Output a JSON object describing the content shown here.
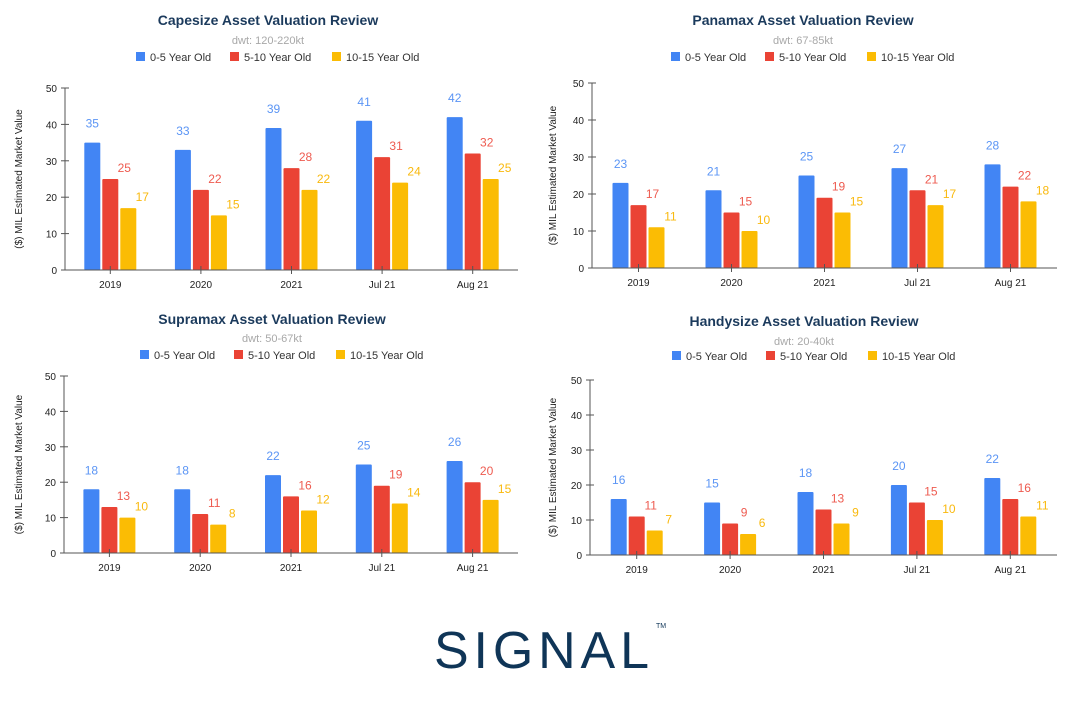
{
  "chart_data": [
    {
      "type": "bar",
      "title": "Capesize Asset Valuation Review",
      "subtitle": "dwt: 120-220kt",
      "ylabel": "($) MIL Estimated Market Value",
      "xlabel": "",
      "ylim": [
        0,
        50
      ],
      "yticks": [
        0,
        10,
        20,
        30,
        40,
        50
      ],
      "legend": "top",
      "grid": false,
      "categories": [
        "2019",
        "2020",
        "2021",
        "Jul 21",
        "Aug 21"
      ],
      "series": [
        {
          "name": "0-5 Year Old",
          "color": "#4285f4",
          "values": [
            35,
            33,
            39,
            41,
            42
          ]
        },
        {
          "name": "5-10 Year Old",
          "color": "#ea4335",
          "values": [
            25,
            22,
            28,
            31,
            32
          ]
        },
        {
          "name": "10-15 Year Old",
          "color": "#fbbc04",
          "values": [
            17,
            15,
            22,
            24,
            25
          ]
        }
      ]
    },
    {
      "type": "bar",
      "title": "Panamax Asset Valuation Review",
      "subtitle": "dwt: 67-85kt",
      "ylabel": "($) MIL Estimated Market Value",
      "xlabel": "",
      "ylim": [
        0,
        50
      ],
      "yticks": [
        0,
        10,
        20,
        30,
        40,
        50
      ],
      "legend": "top",
      "grid": false,
      "categories": [
        "2019",
        "2020",
        "2021",
        "Jul 21",
        "Aug 21"
      ],
      "series": [
        {
          "name": "0-5 Year Old",
          "color": "#4285f4",
          "values": [
            23,
            21,
            25,
            27,
            28
          ]
        },
        {
          "name": "5-10 Year Old",
          "color": "#ea4335",
          "values": [
            17,
            15,
            19,
            21,
            22
          ]
        },
        {
          "name": "10-15 Year Old",
          "color": "#fbbc04",
          "values": [
            11,
            10,
            15,
            17,
            18
          ]
        }
      ]
    },
    {
      "type": "bar",
      "title": "Supramax Asset Valuation Review",
      "subtitle": "dwt: 50-67kt",
      "ylabel": "($) MIL Estimated Market Value",
      "xlabel": "",
      "ylim": [
        0,
        50
      ],
      "yticks": [
        0,
        10,
        20,
        30,
        40,
        50
      ],
      "legend": "top",
      "grid": false,
      "categories": [
        "2019",
        "2020",
        "2021",
        "Jul 21",
        "Aug 21"
      ],
      "series": [
        {
          "name": "0-5 Year Old",
          "color": "#4285f4",
          "values": [
            18,
            18,
            22,
            25,
            26
          ]
        },
        {
          "name": "5-10 Year Old",
          "color": "#ea4335",
          "values": [
            13,
            11,
            16,
            19,
            20
          ]
        },
        {
          "name": "10-15 Year Old",
          "color": "#fbbc04",
          "values": [
            10,
            8,
            12,
            14,
            15
          ]
        }
      ]
    },
    {
      "type": "bar",
      "title": "Handysize Asset Valuation Review",
      "subtitle": "dwt: 20-40kt",
      "ylabel": "($) MIL Estimated Market Value",
      "xlabel": "",
      "ylim": [
        0,
        50
      ],
      "yticks": [
        0,
        10,
        20,
        30,
        40,
        50
      ],
      "legend": "top",
      "grid": false,
      "categories": [
        "2019",
        "2020",
        "2021",
        "Jul 21",
        "Aug 21"
      ],
      "series": [
        {
          "name": "0-5 Year Old",
          "color": "#4285f4",
          "values": [
            16,
            15,
            18,
            20,
            22
          ]
        },
        {
          "name": "5-10 Year Old",
          "color": "#ea4335",
          "values": [
            11,
            9,
            13,
            15,
            16
          ]
        },
        {
          "name": "10-15 Year Old",
          "color": "#fbbc04",
          "values": [
            7,
            6,
            9,
            10,
            11
          ]
        }
      ]
    }
  ],
  "logo": {
    "text": "SIGNAL",
    "trademark": "TM",
    "color": "#0f3557"
  },
  "label_colors": {
    "#4285f4": "#5b95f5",
    "#ea4335": "#ee5b50",
    "#fbbc04": "#f9b90e"
  }
}
